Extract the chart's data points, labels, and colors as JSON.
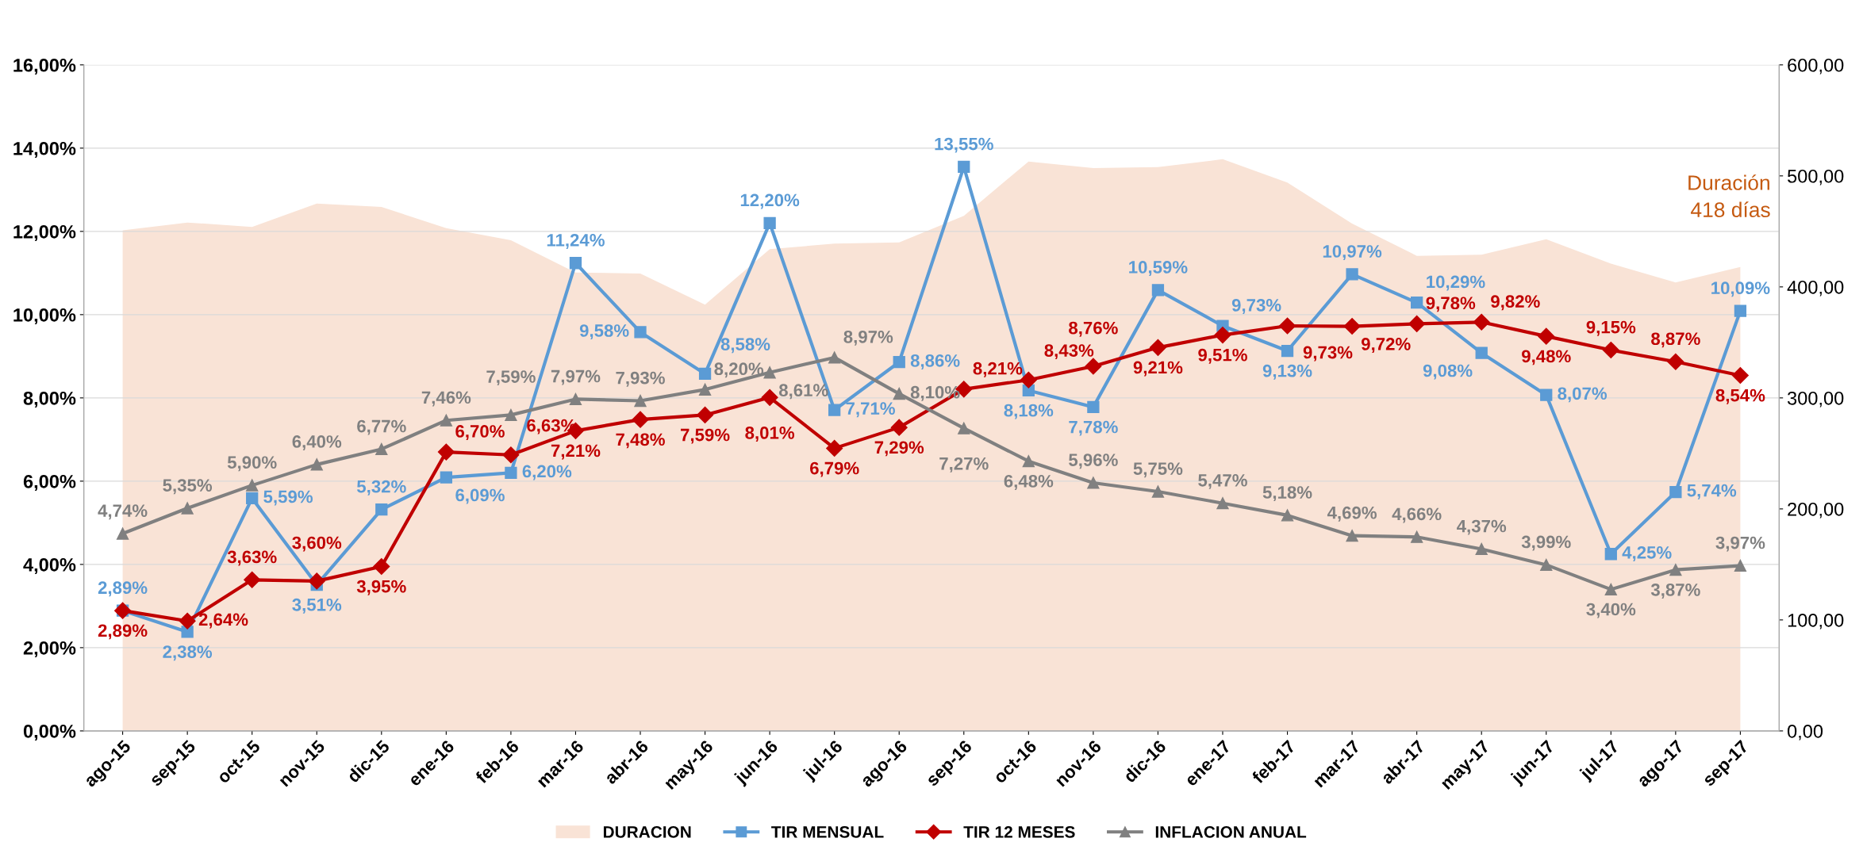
{
  "chart_data": {
    "type": "line",
    "categories": [
      "ago-15",
      "sep-15",
      "oct-15",
      "nov-15",
      "dic-15",
      "ene-16",
      "feb-16",
      "mar-16",
      "abr-16",
      "may-16",
      "jun-16",
      "jul-16",
      "ago-16",
      "sep-16",
      "oct-16",
      "nov-16",
      "dic-16",
      "ene-17",
      "feb-17",
      "mar-17",
      "abr-17",
      "may-17",
      "jun-17",
      "jul-17",
      "ago-17",
      "sep-17"
    ],
    "series": [
      {
        "name": "DURACION",
        "type": "area",
        "axis": "y2",
        "color": "#f9e3d6",
        "values": [
          451,
          458,
          454,
          475,
          472,
          453,
          442,
          413,
          412,
          384,
          434,
          439,
          440,
          464,
          513,
          507,
          508,
          515,
          494,
          457,
          428,
          429,
          443,
          421,
          404,
          418
        ]
      },
      {
        "name": "TIR MENSUAL",
        "marker": "square",
        "color": "#5b9bd5",
        "values": [
          2.89,
          2.38,
          5.59,
          3.51,
          5.32,
          6.09,
          6.2,
          11.24,
          9.58,
          8.58,
          12.2,
          7.71,
          8.86,
          13.55,
          8.18,
          7.78,
          10.59,
          9.73,
          9.13,
          10.97,
          10.29,
          9.08,
          8.07,
          4.25,
          5.74,
          10.09
        ],
        "value_labels": [
          "2,89%",
          "2,38%",
          "5,59%",
          "3,51%",
          "5,32%",
          "6,09%",
          "6,20%",
          "11,24%",
          "9,58%",
          "8,58%",
          "12,20%",
          "7,71%",
          "8,86%",
          "13,55%",
          "8,18%",
          "7,78%",
          "10,59%",
          "9,73%",
          "9,13%",
          "10,97%",
          "10,29%",
          "9,08%",
          "8,07%",
          "4,25%",
          "5,74%",
          "10,09%"
        ]
      },
      {
        "name": "TIR 12 MESES",
        "marker": "diamond",
        "color": "#c00000",
        "values": [
          2.89,
          2.64,
          3.63,
          3.6,
          3.95,
          6.7,
          6.63,
          7.21,
          7.48,
          7.59,
          8.01,
          6.79,
          7.29,
          8.21,
          8.43,
          8.76,
          9.21,
          9.51,
          9.73,
          9.72,
          9.78,
          9.82,
          9.48,
          9.15,
          8.87,
          8.54
        ],
        "value_labels": [
          "2,89%",
          "2,64%",
          "3,63%",
          "3,60%",
          "3,95%",
          "6,70%",
          "6,63%",
          "7,21%",
          "7,48%",
          "7,59%",
          "8,01%",
          "6,79%",
          "7,29%",
          "8,21%",
          "8,43%",
          "8,76%",
          "9,21%",
          "9,51%",
          "9,73%",
          "9,72%",
          "9,78%",
          "9,82%",
          "9,48%",
          "9,15%",
          "8,87%",
          "8,54%"
        ]
      },
      {
        "name": "INFLACION ANUAL",
        "marker": "triangle",
        "color": "#808080",
        "values": [
          4.74,
          5.35,
          5.9,
          6.4,
          6.77,
          7.46,
          7.59,
          7.97,
          7.93,
          8.2,
          8.61,
          8.97,
          8.1,
          7.27,
          6.48,
          5.96,
          5.75,
          5.47,
          5.18,
          4.69,
          4.66,
          4.37,
          3.99,
          3.4,
          3.87,
          3.97
        ],
        "value_labels": [
          "4,74%",
          "5,35%",
          "5,90%",
          "6,40%",
          "6,77%",
          "7,46%",
          "7,59%",
          "7,97%",
          "7,93%",
          "8,20%",
          "8,61%",
          "8,97%",
          "8,10%",
          "7,27%",
          "6,48%",
          "5,96%",
          "5,75%",
          "5,47%",
          "5,18%",
          "4,69%",
          "4,66%",
          "4,37%",
          "3,99%",
          "3,40%",
          "3,87%",
          "3,97%"
        ]
      }
    ],
    "ylim": [
      0,
      16
    ],
    "yticks": [
      {
        "value": 0,
        "label": "0,00%"
      },
      {
        "value": 2,
        "label": "2,00%"
      },
      {
        "value": 4,
        "label": "4,00%"
      },
      {
        "value": 6,
        "label": "6,00%"
      },
      {
        "value": 8,
        "label": "8,00%"
      },
      {
        "value": 10,
        "label": "10,00%"
      },
      {
        "value": 12,
        "label": "12,00%"
      },
      {
        "value": 14,
        "label": "14,00%"
      },
      {
        "value": 16,
        "label": "16,00%"
      }
    ],
    "y2lim": [
      0,
      600
    ],
    "y2ticks": [
      {
        "value": 0,
        "label": "0,00"
      },
      {
        "value": 100,
        "label": "100,00"
      },
      {
        "value": 200,
        "label": "200,00"
      },
      {
        "value": 300,
        "label": "300,00"
      },
      {
        "value": 400,
        "label": "400,00"
      },
      {
        "value": 500,
        "label": "500,00"
      },
      {
        "value": 600,
        "label": "600,00"
      }
    ],
    "annotations": [
      "Duración\n418 días"
    ],
    "grid": "y",
    "legend": "bottom",
    "line_style": "solid"
  }
}
